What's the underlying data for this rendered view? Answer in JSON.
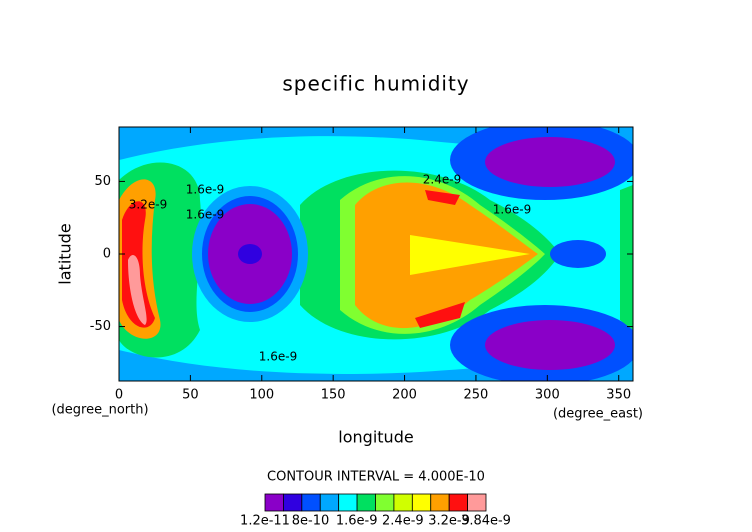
{
  "chart_data": {
    "type": "contour",
    "title": "specific humidity",
    "x_label": "longitude",
    "y_label": "latitude",
    "x_units": "(degree_east)",
    "y_units": "(degree_north)",
    "xlim": [
      0,
      360
    ],
    "ylim": [
      -87.5,
      87.5
    ],
    "xticks": [
      0,
      50,
      100,
      150,
      200,
      250,
      300,
      350
    ],
    "yticks": [
      -50,
      0,
      50
    ],
    "contour_interval": "CONTOUR INTERVAL = 4.000E-10",
    "contour_labels": [
      "1.6e-9",
      "2.4e-9",
      "1.6e-9",
      "1.6e-9",
      "1.6e-9",
      "3.2e-9"
    ],
    "colorbar": {
      "range": [
        1.2e-11,
        3.84e-09
      ],
      "colors": [
        "#8a00c8",
        "#3000e0",
        "#0050ff",
        "#00a8ff",
        "#00ffff",
        "#00e060",
        "#80ff30",
        "#d0ff00",
        "#ffff00",
        "#ffa000",
        "#ff1010",
        "#ff9a9a"
      ],
      "ticks": [
        {
          "value": 1.2e-11,
          "label": "1.2e-11"
        },
        {
          "value": 8e-10,
          "label": "8e-10"
        },
        {
          "value": 1.6e-09,
          "label": "1.6e-9"
        },
        {
          "value": 2.4e-09,
          "label": "2.4e-9"
        },
        {
          "value": 3.2e-09,
          "label": "3.2e-9"
        },
        {
          "value": 3.84e-09,
          "label": "3.84e-9"
        }
      ]
    }
  }
}
